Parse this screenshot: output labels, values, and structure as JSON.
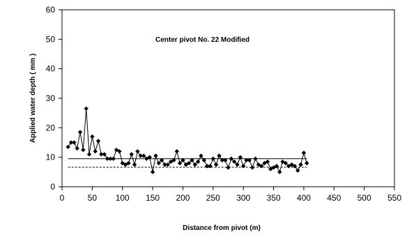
{
  "chart_data": {
    "type": "line",
    "title": "",
    "annotation": "Center pivot No.  22  Modified",
    "xlabel": "Distance from pivot (m)",
    "ylabel": "Applied water depth  ( mm )",
    "xlim": [
      0,
      550
    ],
    "ylim": [
      0,
      60
    ],
    "x_ticks": [
      0,
      50,
      100,
      150,
      200,
      250,
      300,
      350,
      400,
      450,
      500,
      550
    ],
    "y_ticks": [
      0,
      10,
      20,
      30,
      40,
      50,
      60
    ],
    "grid": false,
    "legend": "none",
    "colors": {
      "series": "#000000",
      "axis": "#000000"
    },
    "series": [
      {
        "marker": "diamond",
        "line": "solid",
        "x": [
          10,
          15,
          20,
          25,
          30,
          35,
          40,
          45,
          50,
          55,
          60,
          65,
          70,
          75,
          80,
          85,
          90,
          95,
          100,
          105,
          110,
          115,
          120,
          125,
          130,
          135,
          140,
          145,
          150,
          155,
          160,
          165,
          170,
          175,
          180,
          185,
          190,
          195,
          200,
          205,
          210,
          215,
          220,
          225,
          230,
          235,
          240,
          245,
          250,
          255,
          260,
          265,
          270,
          275,
          280,
          285,
          290,
          295,
          300,
          305,
          310,
          315,
          320,
          325,
          330,
          335,
          340,
          345,
          350,
          355,
          360,
          365,
          370,
          375,
          380,
          385,
          390,
          395,
          400,
          405
        ],
        "y": [
          13.5,
          15,
          15,
          13,
          18.5,
          12.5,
          26.5,
          11,
          17,
          12,
          15.5,
          11,
          11,
          9.5,
          9.5,
          9.5,
          12.5,
          12,
          8,
          7.5,
          8,
          11,
          7.5,
          12,
          10.5,
          10.5,
          9.5,
          10,
          5,
          10.5,
          8,
          9,
          7.5,
          7.5,
          8.5,
          9,
          12,
          8,
          9,
          7.5,
          8,
          9,
          7.5,
          8.5,
          10.5,
          9,
          7,
          7,
          9.5,
          7.5,
          10.5,
          9,
          9,
          6.5,
          9.5,
          8.5,
          7.5,
          10,
          7,
          9,
          9,
          6.5,
          9.5,
          7.5,
          7,
          8,
          8.5,
          6,
          6.5,
          7,
          5,
          8.5,
          8,
          7,
          7.5,
          7,
          5.5,
          7.5,
          11.5,
          8
        ]
      }
    ],
    "reference_lines": [
      {
        "style": "solid",
        "y": 9.5,
        "x": [
          10,
          405
        ]
      },
      {
        "style": "dashed",
        "y": 6.6,
        "x": [
          10,
          405
        ]
      }
    ]
  }
}
